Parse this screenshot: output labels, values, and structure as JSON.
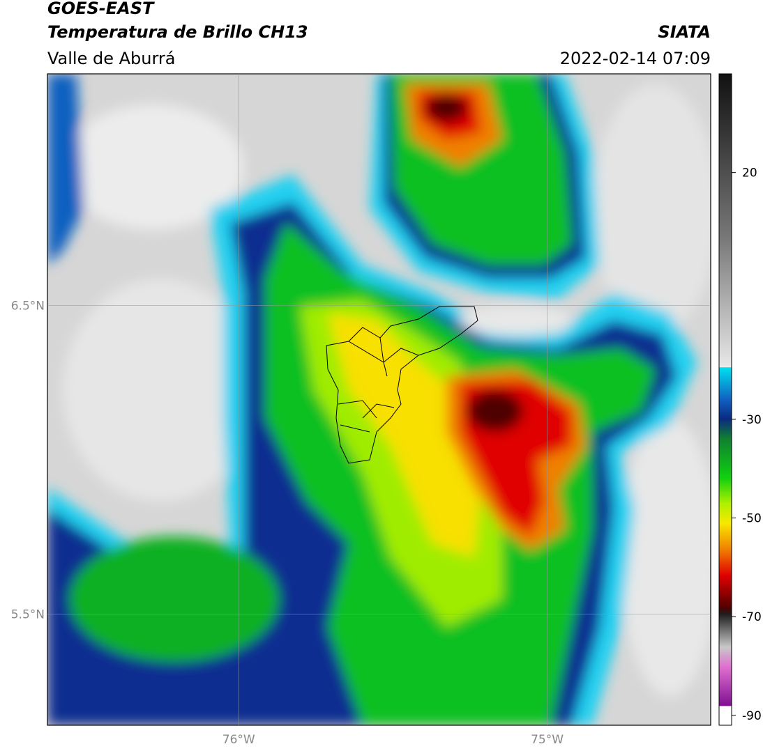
{
  "header": {
    "title_1": "GOES-EAST",
    "title_2": "Temperatura de Brillo CH13",
    "subtitle": "Valle de Aburrá",
    "source": "SIATA",
    "datetime": "2022-02-14 07:09"
  },
  "map": {
    "lonlim": [
      -76.62,
      -74.47
    ],
    "latlim": [
      5.14,
      7.25
    ],
    "lon_ticks": [
      {
        "value": -76,
        "label": "76°W"
      },
      {
        "value": -75,
        "label": "75°W"
      }
    ],
    "lat_ticks": [
      {
        "value": 6.5,
        "label": "6.5°N"
      },
      {
        "value": 5.5,
        "label": "5.5°N"
      }
    ]
  },
  "colorbar": {
    "lim": [
      -92,
      40
    ],
    "ticks": [
      20,
      -30,
      -50,
      -70,
      -90
    ]
  }
}
